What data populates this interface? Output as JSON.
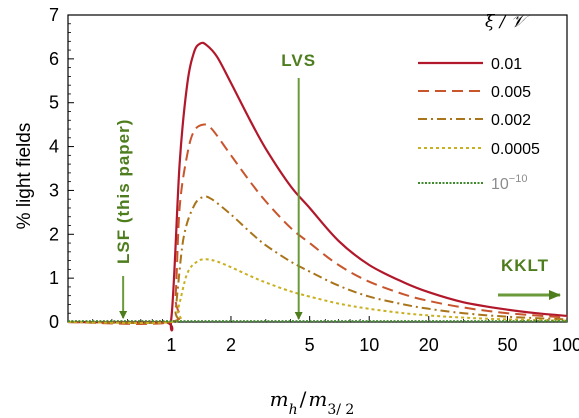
{
  "chart_data": {
    "type": "line",
    "xlabel": "m_h / m_3/2",
    "xlabel_parts": {
      "m1": "m",
      "s1": "h",
      "sep": "/",
      "m2": "m",
      "s2": "3/ 2"
    },
    "ylabel": "% light fields",
    "xscale": "log",
    "xlim": [
      0.3,
      100
    ],
    "ylim": [
      0,
      7
    ],
    "x_ticks": [
      1,
      2,
      5,
      10,
      20,
      50,
      100
    ],
    "x_tick_labels": [
      "1",
      "2",
      "5",
      "10",
      "20",
      "50",
      "100"
    ],
    "y_ticks": [
      0,
      1,
      2,
      3,
      4,
      5,
      6,
      7
    ],
    "y_tick_labels": [
      "0",
      "1",
      "2",
      "3",
      "4",
      "5",
      "6",
      "7"
    ],
    "legend_title": "ξ / 𝒱",
    "legend_position": "top-right",
    "series": [
      {
        "name": "0.01",
        "color": "#b2182b",
        "dash": "solid",
        "points": [
          [
            0.3,
            0
          ],
          [
            0.9,
            0
          ],
          [
            1.0,
            0.1
          ],
          [
            1.1,
            3.6
          ],
          [
            1.2,
            5.4
          ],
          [
            1.3,
            6.15
          ],
          [
            1.4,
            6.35
          ],
          [
            1.5,
            6.32
          ],
          [
            1.7,
            6.05
          ],
          [
            2.0,
            5.45
          ],
          [
            2.5,
            4.6
          ],
          [
            3.0,
            3.95
          ],
          [
            4.0,
            3.1
          ],
          [
            5.0,
            2.6
          ],
          [
            7.0,
            1.85
          ],
          [
            10,
            1.3
          ],
          [
            15,
            0.9
          ],
          [
            20,
            0.68
          ],
          [
            30,
            0.45
          ],
          [
            50,
            0.28
          ],
          [
            70,
            0.2
          ],
          [
            100,
            0.14
          ]
        ]
      },
      {
        "name": "0.005",
        "color": "#c8552b",
        "dash": "long-dash",
        "points": [
          [
            0.3,
            0
          ],
          [
            1.0,
            0
          ],
          [
            1.05,
            0.6
          ],
          [
            1.1,
            2.6
          ],
          [
            1.2,
            3.8
          ],
          [
            1.3,
            4.35
          ],
          [
            1.45,
            4.5
          ],
          [
            1.6,
            4.4
          ],
          [
            2.0,
            3.8
          ],
          [
            2.5,
            3.2
          ],
          [
            3.0,
            2.75
          ],
          [
            4.0,
            2.15
          ],
          [
            5.0,
            1.8
          ],
          [
            7.0,
            1.3
          ],
          [
            10,
            0.92
          ],
          [
            15,
            0.63
          ],
          [
            20,
            0.48
          ],
          [
            30,
            0.33
          ],
          [
            50,
            0.2
          ],
          [
            100,
            0.1
          ]
        ]
      },
      {
        "name": "0.002",
        "color": "#a9741a",
        "dash": "dash-dot",
        "points": [
          [
            0.3,
            0
          ],
          [
            1.0,
            0
          ],
          [
            1.05,
            0.3
          ],
          [
            1.15,
            1.9
          ],
          [
            1.3,
            2.65
          ],
          [
            1.45,
            2.85
          ],
          [
            1.6,
            2.8
          ],
          [
            2.0,
            2.45
          ],
          [
            2.5,
            2.05
          ],
          [
            3.0,
            1.75
          ],
          [
            4.0,
            1.38
          ],
          [
            5.0,
            1.15
          ],
          [
            7.0,
            0.83
          ],
          [
            10,
            0.58
          ],
          [
            15,
            0.4
          ],
          [
            20,
            0.3
          ],
          [
            30,
            0.2
          ],
          [
            50,
            0.12
          ],
          [
            100,
            0.06
          ]
        ]
      },
      {
        "name": "0.0005",
        "color": "#c8b020",
        "dash": "dotted",
        "points": [
          [
            0.3,
            0
          ],
          [
            1.0,
            0
          ],
          [
            1.08,
            0.3
          ],
          [
            1.2,
            1.1
          ],
          [
            1.35,
            1.38
          ],
          [
            1.5,
            1.43
          ],
          [
            1.7,
            1.38
          ],
          [
            2.0,
            1.25
          ],
          [
            2.5,
            1.05
          ],
          [
            3.0,
            0.9
          ],
          [
            4.0,
            0.7
          ],
          [
            5.0,
            0.58
          ],
          [
            7.0,
            0.42
          ],
          [
            10,
            0.3
          ],
          [
            15,
            0.2
          ],
          [
            20,
            0.15
          ],
          [
            30,
            0.1
          ],
          [
            50,
            0.06
          ],
          [
            100,
            0.03
          ]
        ]
      },
      {
        "name": "10^-10",
        "color": "#3f8a2e",
        "dash": "fine-dotted",
        "points": [
          [
            0.3,
            0.02
          ],
          [
            100,
            0.02
          ]
        ]
      }
    ],
    "legend_labels": [
      {
        "text": "0.01",
        "text_color": "#000000"
      },
      {
        "text": "0.005",
        "text_color": "#000000"
      },
      {
        "text": "0.002",
        "text_color": "#000000"
      },
      {
        "text": "0.0005",
        "text_color": "#000000"
      },
      {
        "base": "10",
        "exp": "−10",
        "text_color": "#8c8c8c"
      }
    ],
    "annotations": [
      {
        "text": "LVS",
        "x": 4.4,
        "arrow_from_y": 6.0,
        "arrow_to_y": 0.0,
        "color": "#4e7d1e"
      },
      {
        "text": "LSF (this paper)",
        "x": 0.57,
        "arrow_from_y": 1.25,
        "arrow_to_y": 0.0,
        "color": "#4e7d1e",
        "rotated": true
      },
      {
        "text": "KKLT",
        "arrow_from_x": 55,
        "arrow_to_x": 98,
        "arrow_y": 0.75,
        "color": "#4e7d1e"
      }
    ]
  }
}
